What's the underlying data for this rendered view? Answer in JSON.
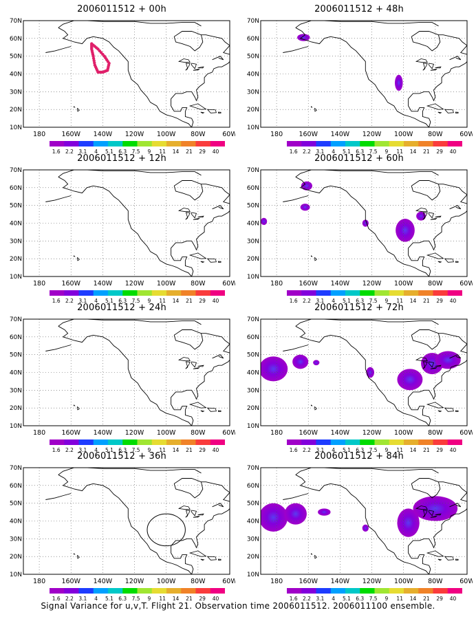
{
  "footer": "Signal Variance for u,v,T. Flight 21. Observation time 2006011512. 2006011100 ensemble.",
  "axes": {
    "lon_labels": [
      "180",
      "160W",
      "140W",
      "120W",
      "100W",
      "80W",
      "60W"
    ],
    "lat_labels": [
      "10N",
      "20N",
      "30N",
      "40N",
      "50N",
      "60N",
      "70N"
    ],
    "grid": "dotted"
  },
  "colorbar": {
    "levels": [
      "1.6",
      "2.2",
      "3.1",
      "4",
      "5.1",
      "6.3",
      "7.5",
      "9",
      "11",
      "14",
      "21",
      "29",
      "40"
    ],
    "colors": [
      "#a000c8",
      "#8200dc",
      "#1e3cff",
      "#00a0ff",
      "#00c8c8",
      "#00dc00",
      "#a0e632",
      "#e6dc32",
      "#e6af2d",
      "#f08228",
      "#fa3c3c",
      "#f00082"
    ]
  },
  "panels": [
    {
      "title": "2006011512 + 00h",
      "feature": "flight_track",
      "track_color": "#e0206a"
    },
    {
      "title": "2006011512 + 12h",
      "feature": "none"
    },
    {
      "title": "2006011512 + 24h",
      "feature": "none"
    },
    {
      "title": "2006011512 + 36h",
      "feature": "circle"
    },
    {
      "title": "2006011512 + 48h",
      "feature": "variance"
    },
    {
      "title": "2006011512 + 60h",
      "feature": "variance"
    },
    {
      "title": "2006011512 + 72h",
      "feature": "variance"
    },
    {
      "title": "2006011512 + 84h",
      "feature": "variance"
    }
  ]
}
